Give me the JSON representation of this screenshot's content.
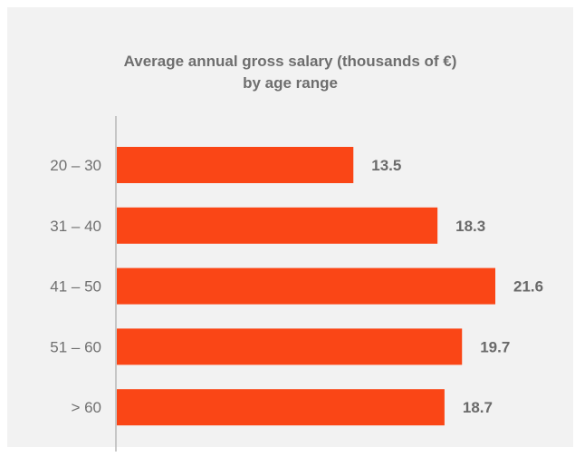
{
  "chart_data": {
    "type": "bar",
    "orientation": "horizontal",
    "title_lines": [
      "Average annual gross salary (thousands of €)",
      "by age range"
    ],
    "categories": [
      "20 – 30",
      "31 – 40",
      "41 – 50",
      "51 – 60",
      "> 60"
    ],
    "values": [
      13.5,
      18.3,
      21.6,
      19.7,
      18.7
    ],
    "value_labels": [
      "13.5",
      "18.3",
      "21.6",
      "19.7",
      "18.7"
    ],
    "xlim": [
      0,
      21.6
    ],
    "grid": false,
    "bar_color": "#fa4616",
    "background_color": "#f2f2f2"
  }
}
